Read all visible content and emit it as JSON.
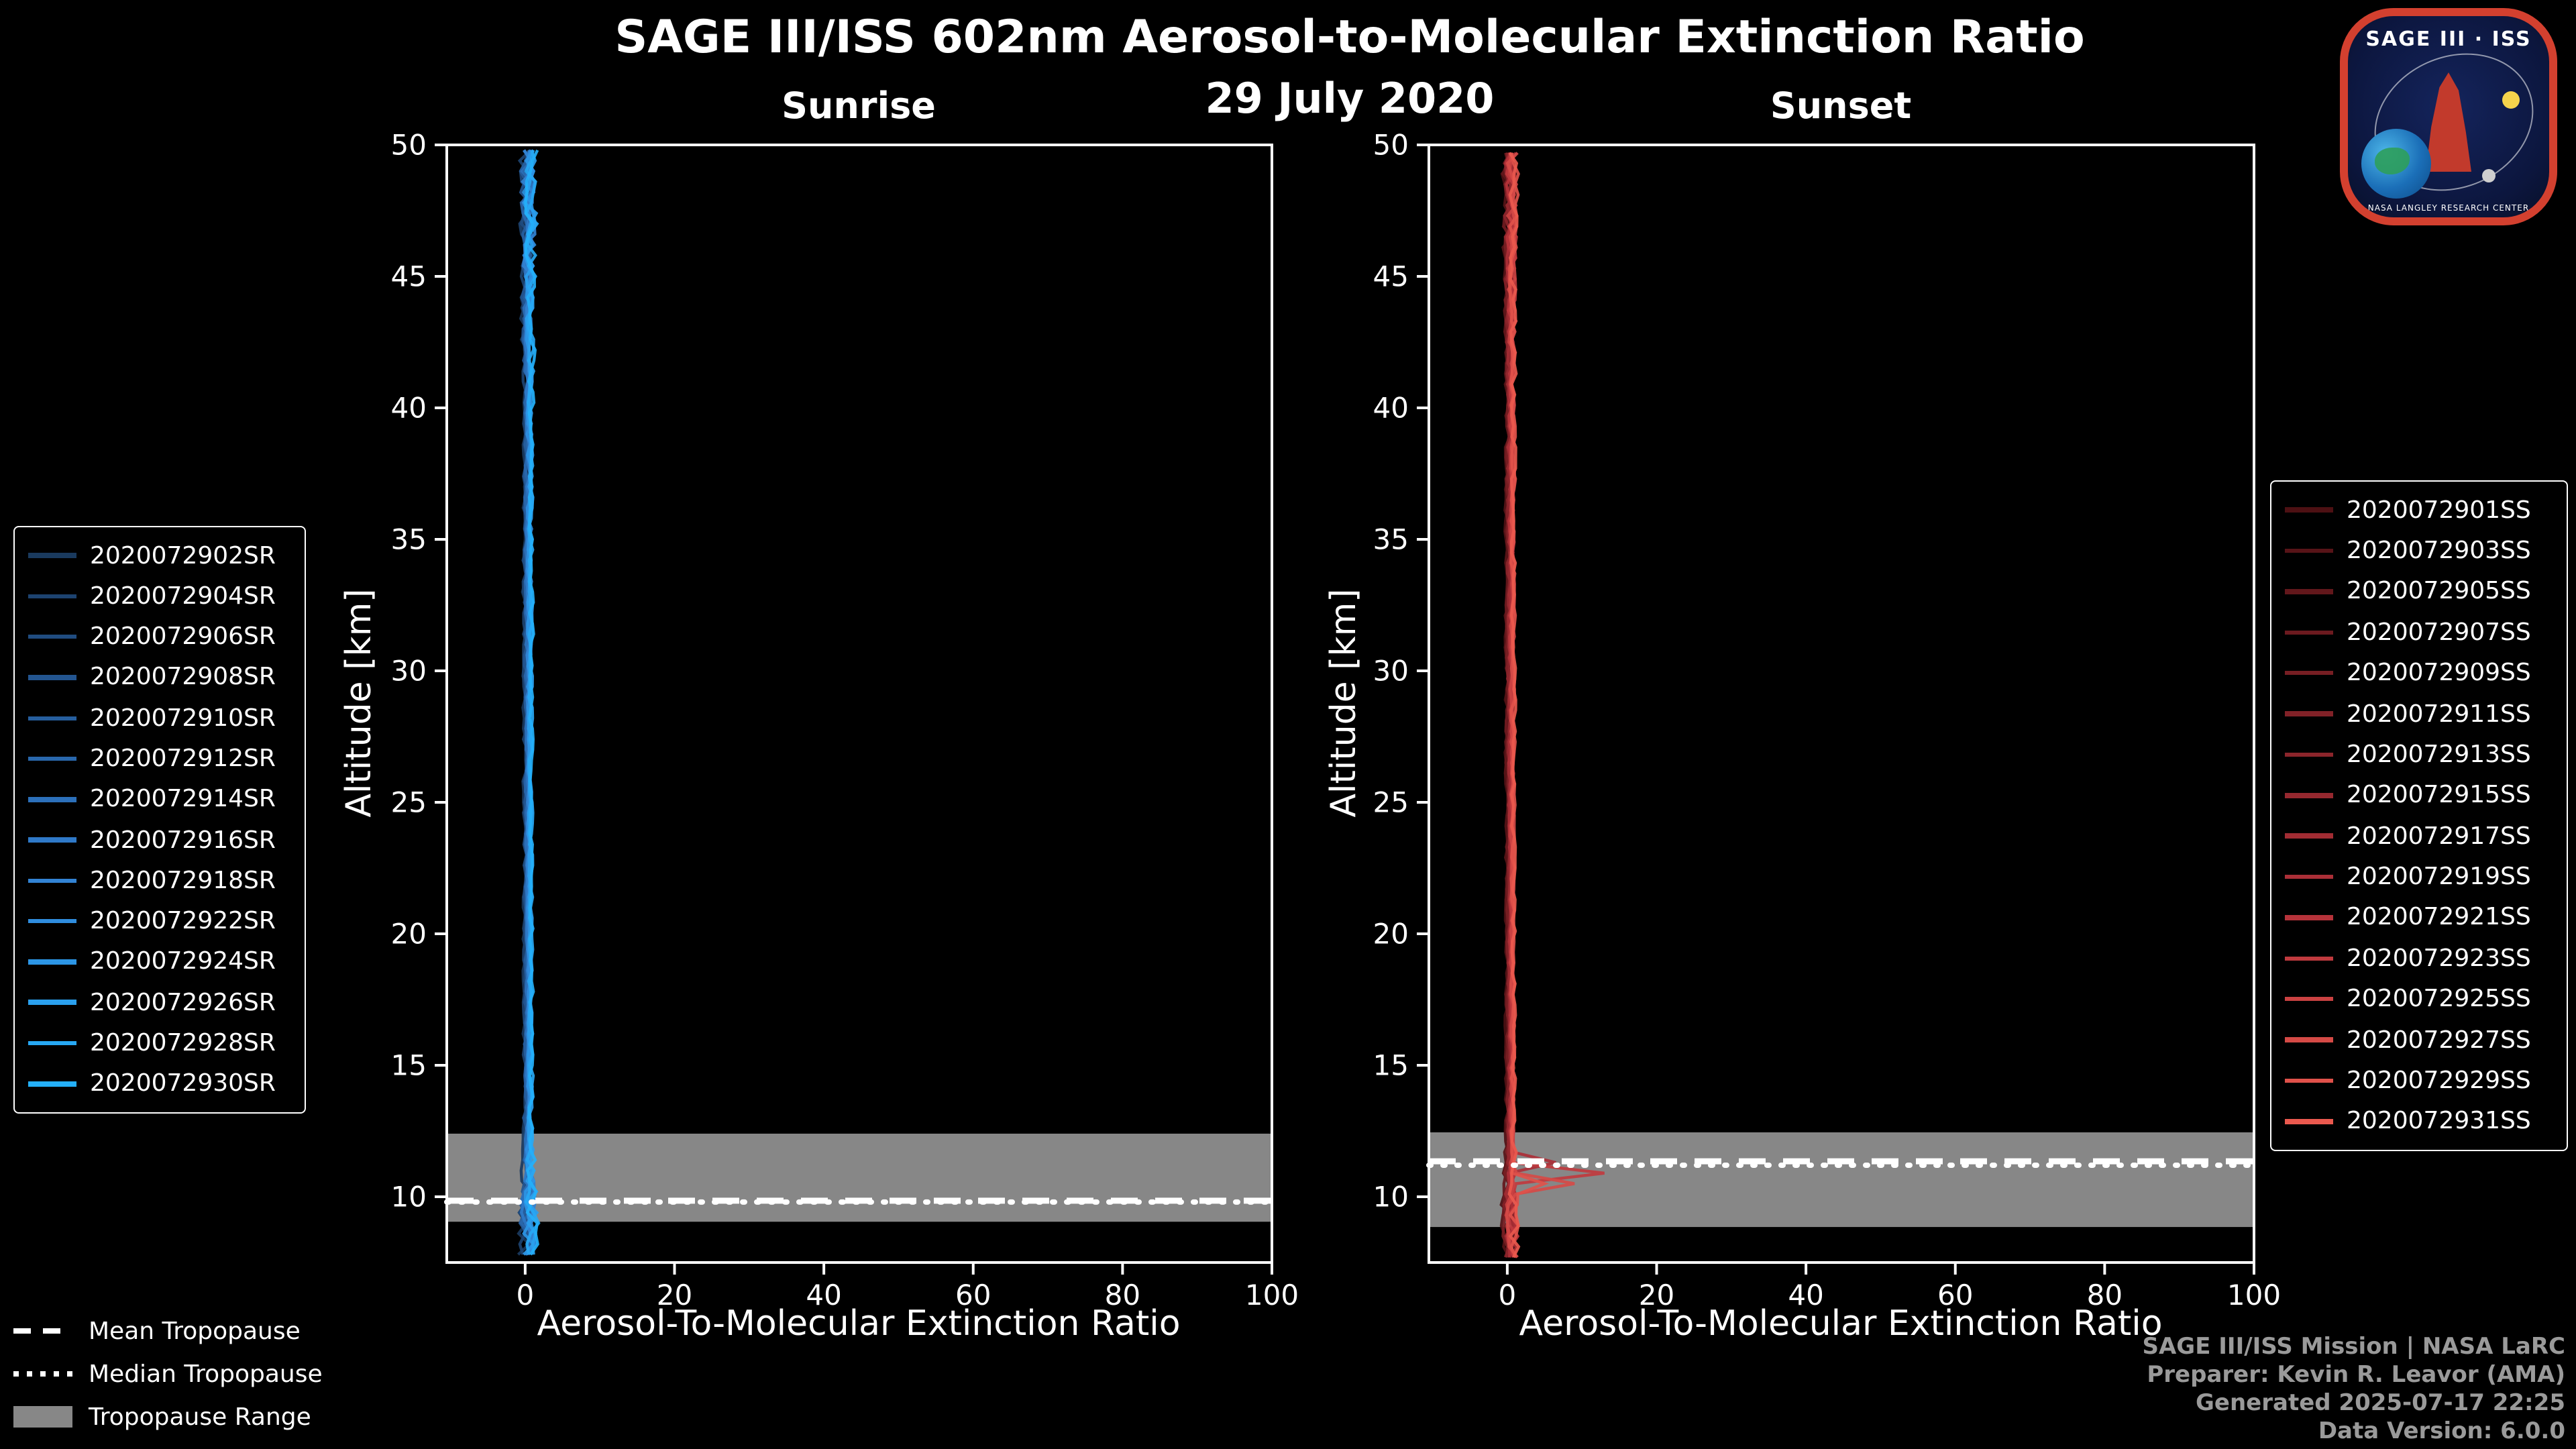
{
  "page": {
    "background": "#000000"
  },
  "header": {
    "title": "SAGE III/ISS 602nm Aerosol-to-Molecular Extinction Ratio",
    "subtitle": "29 July 2020"
  },
  "logo": {
    "title": "SAGE III · ISS",
    "ring_text": "NASA LANGLEY RESEARCH CENTER"
  },
  "chart_data": {
    "type": "line",
    "title": "SAGE III/ISS 602nm Aerosol-to-Molecular Extinction Ratio",
    "subtitle": "29 July 2020",
    "xlabel": "Aerosol-To-Molecular Extinction Ratio",
    "ylabel": "Altitude [km]",
    "xlim": [
      -10.5,
      100
    ],
    "ylim": [
      7.5,
      50
    ],
    "xticks": [
      0,
      20,
      40,
      60,
      80,
      100
    ],
    "yticks": [
      10,
      15,
      20,
      25,
      30,
      35,
      40,
      45,
      50
    ],
    "grid": false,
    "band_color": "#878787",
    "frame_color": "#ffffff",
    "legend_position": [
      "outside-left",
      "outside-right"
    ],
    "panels": [
      {
        "id": "sunrise",
        "title": "Sunrise",
        "tropopause": {
          "mean": 9.85,
          "median": 9.8,
          "range": [
            9.05,
            12.4
          ]
        },
        "profile": {
          "base_ratio": 0.4,
          "alt_min": 7.8,
          "alt_max": 50,
          "alt_step": 0.4,
          "spread_profile": [
            [
              7.8,
              1.8
            ],
            [
              9.5,
              2.2
            ],
            [
              12,
              0.7
            ],
            [
              20,
              0.5
            ],
            [
              40,
              0.7
            ],
            [
              44,
              1.2
            ],
            [
              46,
              1.6
            ],
            [
              50,
              1.8
            ]
          ]
        },
        "spikes": [],
        "series": [
          {
            "name": "2020072902SR",
            "color": "#1a3a5e"
          },
          {
            "name": "2020072904SR",
            "color": "#1d4370"
          },
          {
            "name": "2020072906SR",
            "color": "#204c80"
          },
          {
            "name": "2020072908SR",
            "color": "#235590"
          },
          {
            "name": "2020072910SR",
            "color": "#265e9e"
          },
          {
            "name": "2020072912SR",
            "color": "#2967ac"
          },
          {
            "name": "2020072914SR",
            "color": "#2c70ba"
          },
          {
            "name": "2020072916SR",
            "color": "#2f79c8"
          },
          {
            "name": "2020072918SR",
            "color": "#3283d4"
          },
          {
            "name": "2020072922SR",
            "color": "#2f8dde"
          },
          {
            "name": "2020072924SR",
            "color": "#2c96e6"
          },
          {
            "name": "2020072926SR",
            "color": "#2aa0ee"
          },
          {
            "name": "2020072928SR",
            "color": "#27a8f4"
          },
          {
            "name": "2020072930SR",
            "color": "#24b0fa"
          }
        ]
      },
      {
        "id": "sunset",
        "title": "Sunset",
        "tropopause": {
          "mean": 11.35,
          "median": 11.2,
          "range": [
            8.85,
            12.45
          ]
        },
        "profile": {
          "base_ratio": 0.4,
          "alt_min": 7.7,
          "alt_max": 50,
          "alt_step": 0.4,
          "spread_profile": [
            [
              7.7,
              1.5
            ],
            [
              9.5,
              1.8
            ],
            [
              12,
              0.6
            ],
            [
              20,
              0.5
            ],
            [
              40,
              0.7
            ],
            [
              44,
              1.0
            ],
            [
              47,
              1.4
            ],
            [
              50,
              1.5
            ]
          ]
        },
        "spikes": [
          {
            "series": 11,
            "alt": 11.0,
            "ratio": 13
          },
          {
            "series": 13,
            "alt": 10.7,
            "ratio": 9
          },
          {
            "series": 9,
            "alt": 11.45,
            "ratio": 6.5
          },
          {
            "series": 14,
            "alt": 10.45,
            "ratio": 5
          }
        ],
        "series": [
          {
            "name": "2020072901SS",
            "color": "#4d1013"
          },
          {
            "name": "2020072903SS",
            "color": "#571317"
          },
          {
            "name": "2020072905SS",
            "color": "#62171b"
          },
          {
            "name": "2020072907SS",
            "color": "#6c1a1f"
          },
          {
            "name": "2020072909SS",
            "color": "#771e23"
          },
          {
            "name": "2020072911SS",
            "color": "#812127"
          },
          {
            "name": "2020072913SS",
            "color": "#8c252b"
          },
          {
            "name": "2020072915SS",
            "color": "#96282f"
          },
          {
            "name": "2020072917SS",
            "color": "#a12c33"
          },
          {
            "name": "2020072919SS",
            "color": "#ab2f37"
          },
          {
            "name": "2020072921SS",
            "color": "#b6333a"
          },
          {
            "name": "2020072923SS",
            "color": "#c03a3e"
          },
          {
            "name": "2020072925SS",
            "color": "#cb4242"
          },
          {
            "name": "2020072927SS",
            "color": "#d54a46"
          },
          {
            "name": "2020072929SS",
            "color": "#e0514a"
          },
          {
            "name": "2020072931SS",
            "color": "#ea594e"
          }
        ]
      }
    ]
  },
  "tropopause_legend": {
    "items": [
      {
        "style": "dashed",
        "label": "Mean Tropopause"
      },
      {
        "style": "dotted",
        "label": "Median Tropopause"
      },
      {
        "style": "band",
        "label": "Tropopause Range"
      }
    ]
  },
  "footer": {
    "lines": [
      "SAGE III/ISS Mission | NASA LaRC",
      "Preparer: Kevin R. Leavor (AMA)",
      "Generated 2025-07-17 22:25",
      "Data Version: 6.0.0"
    ]
  }
}
